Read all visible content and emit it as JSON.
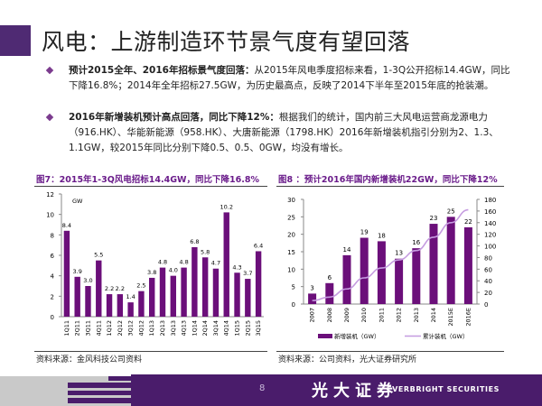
{
  "title": "风电：上游制造环节景气度有望回落",
  "bullets": [
    {
      "bold": "预计2015全年、2016年招标景气度回落：",
      "text": "从2015年风电季度招标来看，1-3Q公开招标14.4GW，同比下降16.8%；2014年全年招标27.5GW，为历史最高点，反映了2014下半年至2015年底的抢装潮。"
    },
    {
      "bold": "2016年新增装机预计高点回落，同比下降12%：",
      "text": "根据我们的统计，国内前三大风电运营商龙源电力（916.HK）、华能新能源（958.HK）、大唐新能源（1798.HK）2016年新增装机指引分别为2、1.3、1.1GW，较2015年同比分别下降0.5、0.5、0GW，均没有增长。"
    }
  ],
  "chart_data": [
    {
      "type": "bar",
      "title": "图7：2015年1-3Q风电招标14.4GW，同比下降16.8%",
      "unit": "GW",
      "categories": [
        "1Q11",
        "2Q11",
        "3Q11",
        "4Q11",
        "1Q12",
        "2Q12",
        "3Q12",
        "4Q12",
        "1Q13",
        "2Q13",
        "3Q13",
        "4Q13",
        "1Q14",
        "2Q14",
        "3Q14",
        "4Q14",
        "1Q15",
        "2Q15",
        "3Q15"
      ],
      "values": [
        8.4,
        3.9,
        3.0,
        5.5,
        2.2,
        2.2,
        1.4,
        2.5,
        3.8,
        4.8,
        4.0,
        4.8,
        6.8,
        5.8,
        4.7,
        10.2,
        4.3,
        3.7,
        6.4
      ],
      "value_labels": [
        "8.4",
        "3.9",
        "3.0",
        "5.5",
        "2.2",
        "2.2",
        "1.4",
        "2.5",
        "3.8",
        "4.8",
        "4.0",
        "4.8",
        "6.8",
        "5.8",
        "4.7",
        "10.2",
        "4.3",
        "3.7",
        "6.4"
      ],
      "yticks": [
        "0",
        "2",
        "4",
        "6",
        "8",
        "10",
        "12"
      ],
      "ylim": [
        0,
        12
      ],
      "color": "#6b0f7a",
      "source": "资料来源：金风科技公司资料"
    },
    {
      "type": "bar+line",
      "title": "图8 ：预计2016年国内新增装机22GW，同比下降12%",
      "categories": [
        "2007",
        "2008",
        "2009",
        "2010",
        "2011",
        "2012",
        "2013",
        "2014",
        "2015E",
        "2016E"
      ],
      "series": [
        {
          "name": "新增装机（GW）",
          "type": "bar",
          "axis": "left",
          "values": [
            3,
            6,
            14,
            19,
            18,
            13,
            16,
            23,
            25,
            22
          ],
          "color": "#6b0f7a"
        },
        {
          "name": "累计装机（GW）",
          "type": "line",
          "axis": "right",
          "values": [
            6,
            12,
            26,
            45,
            62,
            76,
            92,
            115,
            140,
            162
          ],
          "color": "#c59be0"
        }
      ],
      "value_labels": [
        "3",
        "6",
        "14",
        "19",
        "18",
        "13",
        "16",
        "23",
        "25",
        "22"
      ],
      "yticks_left": [
        "0",
        "5",
        "10",
        "15",
        "20",
        "25",
        "30"
      ],
      "ylim_left": [
        0,
        30
      ],
      "yticks_right": [
        "0",
        "20",
        "40",
        "60",
        "80",
        "100",
        "120",
        "140",
        "160",
        "180"
      ],
      "ylim_right": [
        0,
        180
      ],
      "legend_position": "bottom",
      "source": "资料来源：公司资料，光大证券研究所"
    }
  ],
  "footer": {
    "page": "8",
    "logo_cn": "光大证券",
    "logo_en": "EVERBRIGHT SECURITIES"
  }
}
